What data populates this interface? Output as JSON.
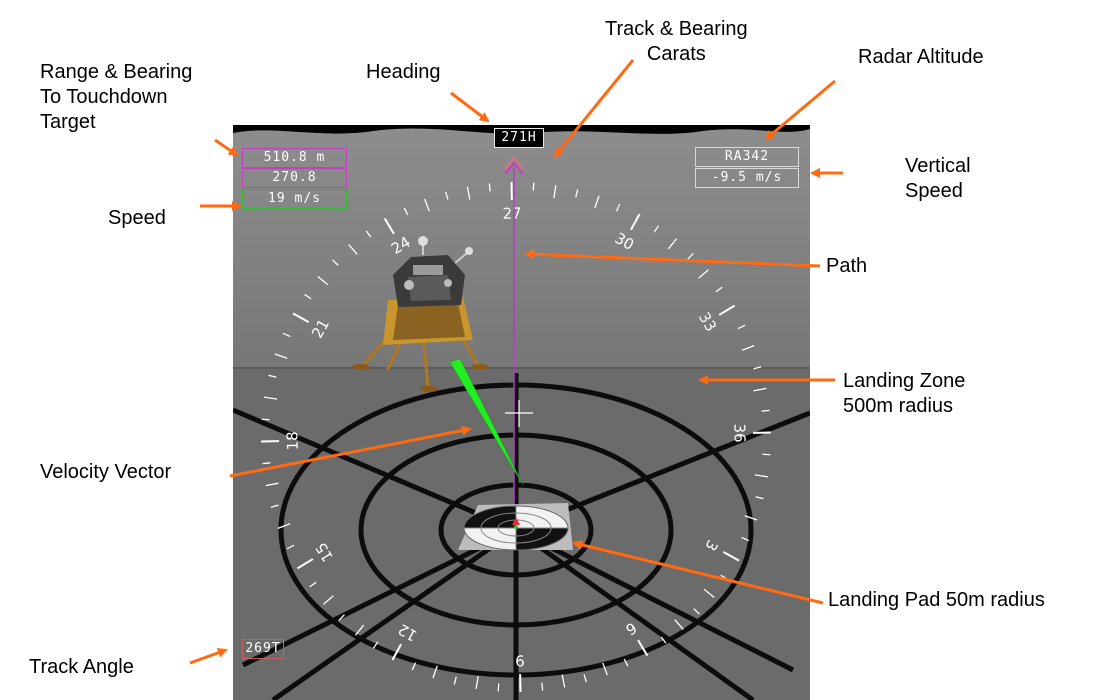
{
  "callouts": {
    "range_bearing": "Range & Bearing\nTo Touchdown\nTarget",
    "heading": "Heading",
    "track_carats": "Track & Bearing\nCarats",
    "radar_altitude": "Radar Altitude",
    "vertical_speed": "Vertical\nSpeed",
    "speed": "Speed",
    "path": "Path",
    "landing_zone": "Landing Zone\n500m radius",
    "velocity_vector": "Velocity Vector",
    "landing_pad": "Landing Pad 50m radius",
    "track_angle": "Track Angle"
  },
  "hud": {
    "range": "510.8 m",
    "bearing": "270.8",
    "speed": "19 m/s",
    "heading": "271H",
    "radar_altitude": "RA342",
    "vertical_speed": "-9.5 m/s",
    "track_angle": "269T"
  },
  "compass": {
    "labels": [
      "18",
      "21",
      "24",
      "27",
      "30",
      "33",
      "36",
      "3",
      "6",
      "9",
      "12",
      "15"
    ],
    "heading_deg": 271
  },
  "colors": {
    "callout_arrow": "#ff6a13",
    "range_box": "#c040c0",
    "speed_box": "#2fb82f",
    "ra_box": "#d8d8d8",
    "track_box": "#c86060",
    "path_line": "#b040c0",
    "velocity_vector": "#22ee22",
    "sky": "#000000",
    "surface_far": "#7d7d7d",
    "surface_near": "#6a6a6a"
  }
}
